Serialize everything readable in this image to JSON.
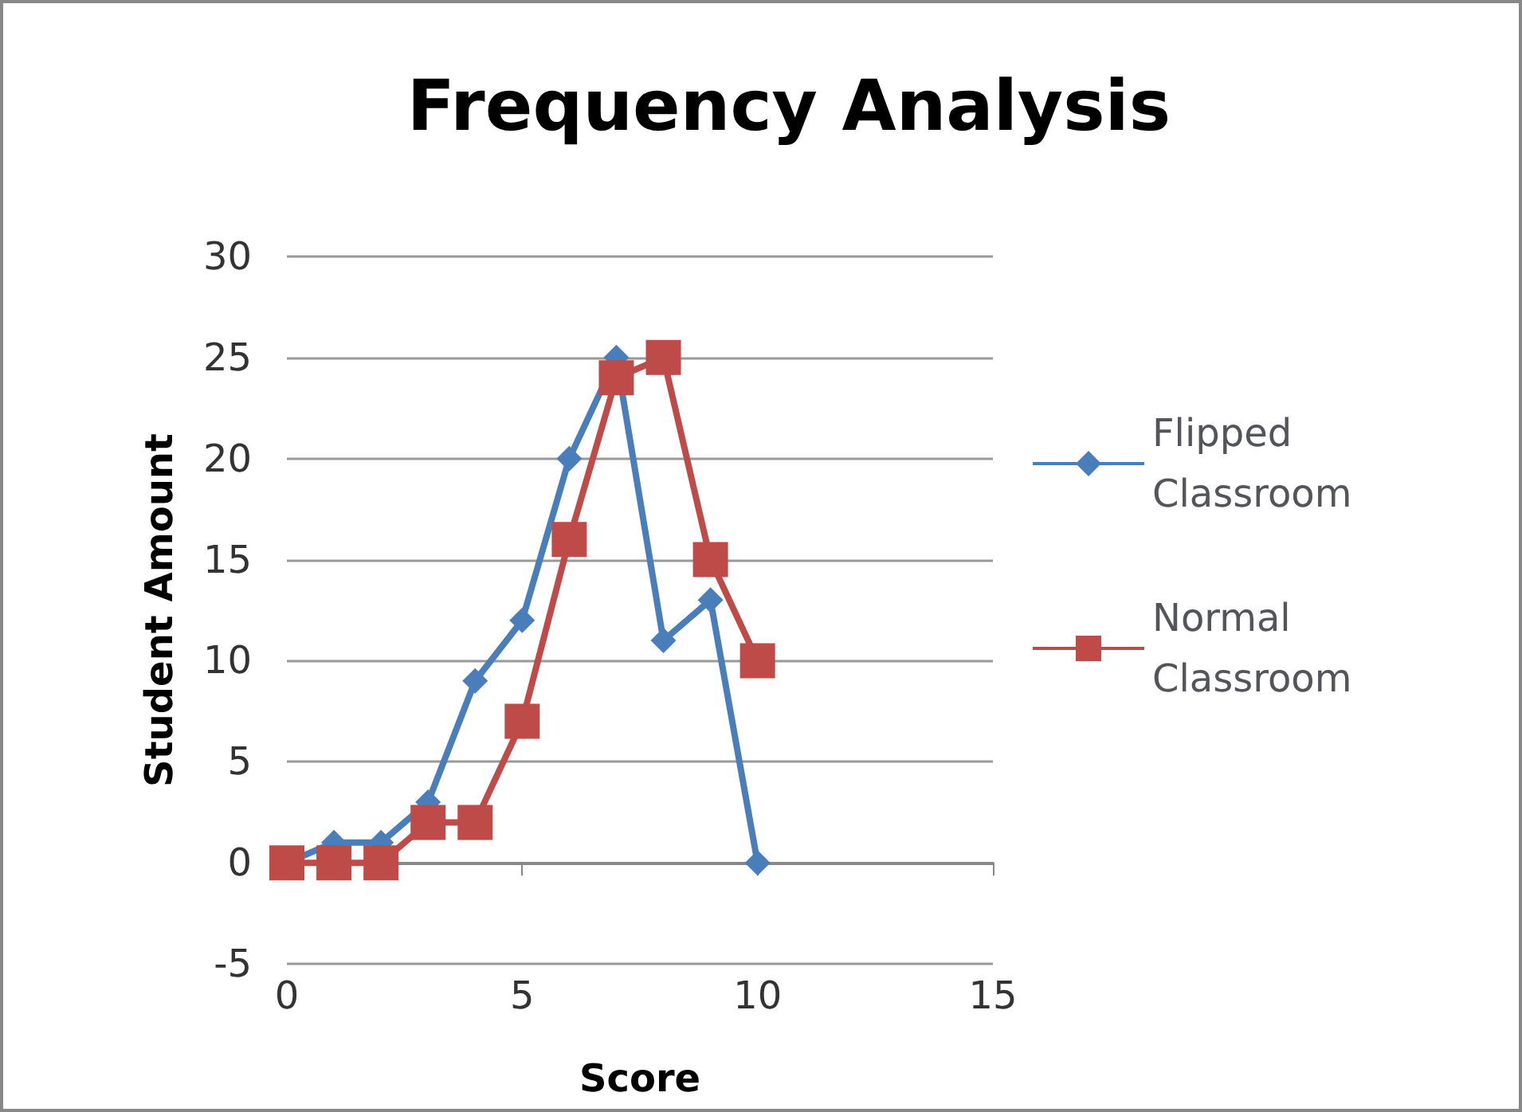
{
  "chart_data": {
    "type": "line",
    "title": "Frequency Analysis",
    "xlabel": "Score",
    "ylabel": "Student Amount",
    "x": [
      0,
      1,
      2,
      3,
      4,
      5,
      6,
      7,
      8,
      9,
      10
    ],
    "series": [
      {
        "name": "Flipped Classroom",
        "color": "#4a7ebb",
        "marker": "diamond",
        "values": [
          0,
          1,
          1,
          3,
          9,
          12,
          20,
          25,
          11,
          13,
          0
        ]
      },
      {
        "name": "Normal Classroom",
        "color": "#be4b48",
        "marker": "square",
        "values": [
          0,
          0,
          0,
          2,
          2,
          7,
          16,
          24,
          25,
          15,
          10
        ]
      }
    ],
    "xlim": [
      0,
      15
    ],
    "xticks": [
      0,
      5,
      10,
      15
    ],
    "ylim": [
      -5,
      30
    ],
    "yticks": [
      -5,
      0,
      5,
      10,
      15,
      20,
      25,
      30
    ],
    "grid": "y",
    "legend": "right"
  }
}
